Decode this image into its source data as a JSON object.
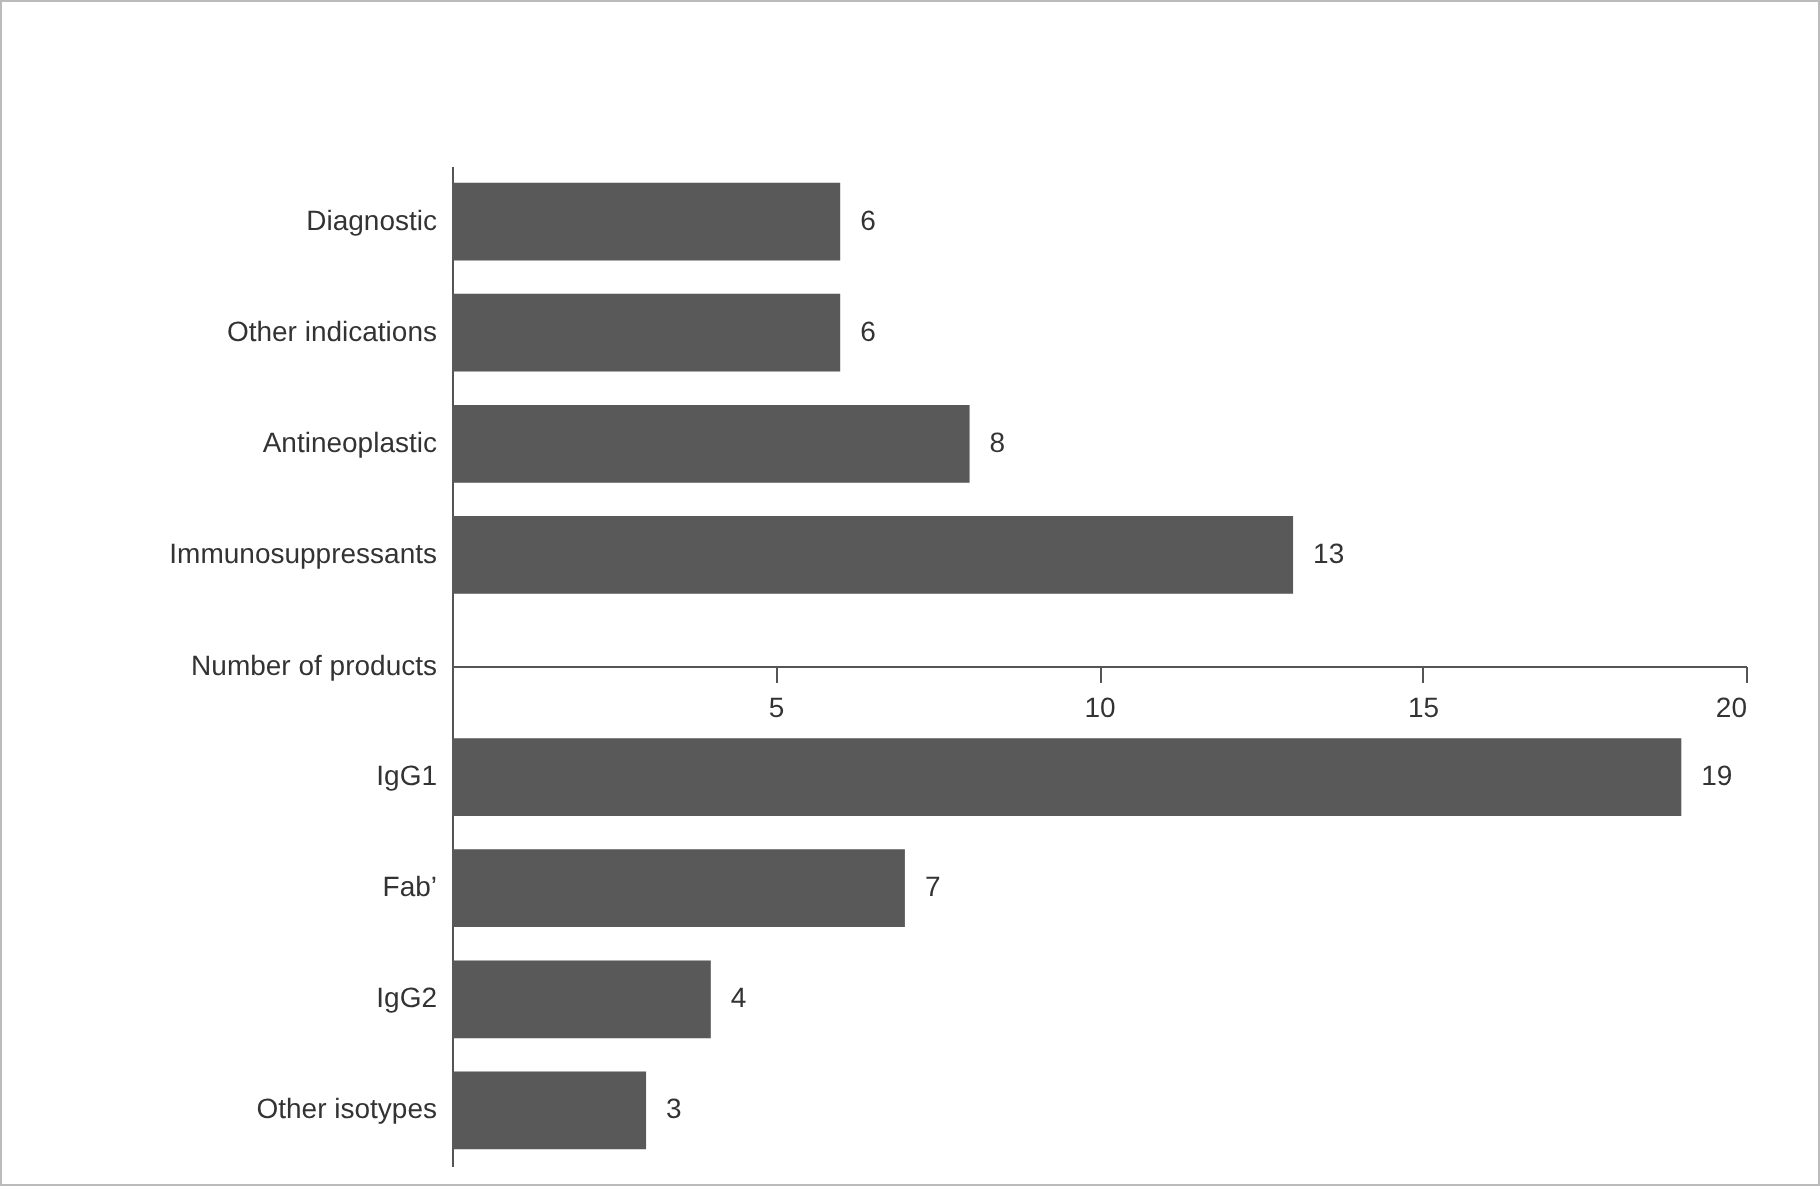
{
  "chart_data": {
    "type": "bar",
    "orientation": "horizontal",
    "categories": [
      "Diagnostic",
      "Other indications",
      "Antineoplastic",
      "Immunosuppressants",
      null,
      "IgG1",
      "Fab’",
      "IgG2",
      "Other isotypes"
    ],
    "values": [
      6,
      6,
      8,
      13,
      null,
      19,
      7,
      4,
      3
    ],
    "color": "#595959",
    "xlabel": "Number of products",
    "xlim": [
      0,
      20
    ],
    "xticks": [
      5,
      10,
      15,
      20
    ],
    "data_labels": true,
    "grid": false
  }
}
